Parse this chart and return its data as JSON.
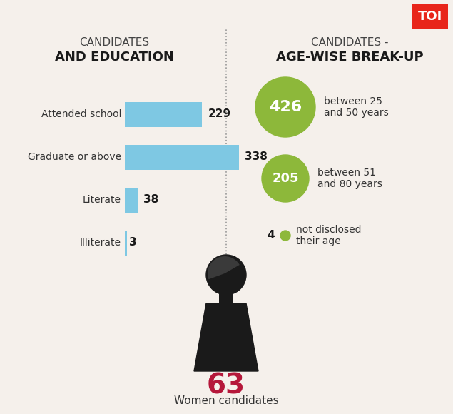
{
  "bg_color": "#f5f0eb",
  "title_left_line1": "CANDIDATES",
  "title_left_line2": "AND EDUCATION",
  "title_right_line1": "CANDIDATES -",
  "title_right_line2": "AGE-WISE BREAK-UP",
  "edu_categories": [
    "Attended school",
    "Graduate or above",
    "Literate",
    "Illiterate"
  ],
  "edu_values": [
    229,
    338,
    38,
    3
  ],
  "edu_max": 338,
  "bar_color": "#7ec8e3",
  "age_values": [
    426,
    205,
    4
  ],
  "age_labels": [
    "between 25\nand 50 years",
    "between 51\nand 80 years",
    "not disclosed\ntheir age"
  ],
  "circle_color_large": "#8db83a",
  "circle_color_small": "#8db83a",
  "dot_color": "#8db83a",
  "women_count": "63",
  "women_label": "Women candidates",
  "women_color": "#b5173a",
  "toi_bg": "#e8251a",
  "toi_text": "TOI",
  "divider_color": "#999999",
  "text_color": "#333333",
  "value_color": "#1a1a1a"
}
